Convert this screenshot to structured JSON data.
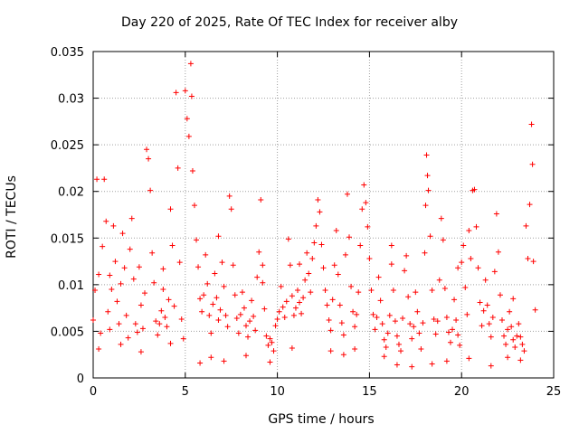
{
  "chart_data": {
    "type": "scatter",
    "title": "Day 220 of 2025, Rate Of TEC Index for receiver alby",
    "xlabel": "GPS time / hours",
    "ylabel": "ROTI / TECUs",
    "xlim": [
      0,
      25
    ],
    "ylim": [
      0,
      0.035
    ],
    "x_ticks": [
      0,
      5,
      10,
      15,
      20,
      25
    ],
    "x_tick_labels": [
      "0",
      "5",
      "10",
      "15",
      "20",
      "25"
    ],
    "y_ticks": [
      0,
      0.005,
      0.01,
      0.015,
      0.02,
      0.025,
      0.03,
      0.035
    ],
    "y_tick_labels": [
      "0",
      "0.005",
      "0.01",
      "0.015",
      "0.02",
      "0.025",
      "0.03",
      "0.035"
    ],
    "grid": true,
    "marker": "+",
    "series": [
      {
        "name": "ROTI",
        "color": "#ff0000",
        "points": [
          [
            0.0,
            0.0062
          ],
          [
            0.1,
            0.0094
          ],
          [
            0.2,
            0.0213
          ],
          [
            0.3,
            0.0111
          ],
          [
            0.4,
            0.0048
          ],
          [
            0.5,
            0.0141
          ],
          [
            0.6,
            0.0213
          ],
          [
            0.7,
            0.0168
          ],
          [
            0.8,
            0.0071
          ],
          [
            0.9,
            0.0052
          ],
          [
            1.0,
            0.0095
          ],
          [
            1.1,
            0.0163
          ],
          [
            1.2,
            0.0125
          ],
          [
            1.3,
            0.0082
          ],
          [
            1.4,
            0.0058
          ],
          [
            1.5,
            0.0101
          ],
          [
            1.6,
            0.0155
          ],
          [
            1.7,
            0.0118
          ],
          [
            1.8,
            0.0067
          ],
          [
            1.9,
            0.0043
          ],
          [
            2.0,
            0.0138
          ],
          [
            2.1,
            0.0171
          ],
          [
            2.2,
            0.0106
          ],
          [
            2.3,
            0.0058
          ],
          [
            2.4,
            0.0049
          ],
          [
            2.5,
            0.0119
          ],
          [
            2.6,
            0.0078
          ],
          [
            2.7,
            0.0053
          ],
          [
            2.8,
            0.0091
          ],
          [
            2.9,
            0.0245
          ],
          [
            3.0,
            0.0235
          ],
          [
            3.1,
            0.0201
          ],
          [
            3.2,
            0.0134
          ],
          [
            3.3,
            0.0102
          ],
          [
            3.4,
            0.0061
          ],
          [
            3.5,
            0.0046
          ],
          [
            3.6,
            0.0058
          ],
          [
            3.7,
            0.0072
          ],
          [
            3.8,
            0.0095
          ],
          [
            3.9,
            0.0065
          ],
          [
            4.0,
            0.0055
          ],
          [
            4.1,
            0.0084
          ],
          [
            4.2,
            0.0181
          ],
          [
            4.3,
            0.0142
          ],
          [
            4.4,
            0.0077
          ],
          [
            4.5,
            0.0306
          ],
          [
            4.6,
            0.0225
          ],
          [
            4.7,
            0.0124
          ],
          [
            4.8,
            0.0063
          ],
          [
            4.9,
            0.0042
          ],
          [
            5.0,
            0.0308
          ],
          [
            5.1,
            0.0278
          ],
          [
            5.2,
            0.0259
          ],
          [
            5.3,
            0.0337
          ],
          [
            5.35,
            0.0302
          ],
          [
            5.4,
            0.0222
          ],
          [
            5.5,
            0.0185
          ],
          [
            5.6,
            0.0148
          ],
          [
            5.7,
            0.0119
          ],
          [
            5.8,
            0.0085
          ],
          [
            5.9,
            0.0071
          ],
          [
            6.0,
            0.0089
          ],
          [
            6.1,
            0.0132
          ],
          [
            6.2,
            0.0101
          ],
          [
            6.3,
            0.0067
          ],
          [
            6.4,
            0.0048
          ],
          [
            6.5,
            0.0079
          ],
          [
            6.6,
            0.0112
          ],
          [
            6.7,
            0.0086
          ],
          [
            6.8,
            0.0062
          ],
          [
            6.9,
            0.0073
          ],
          [
            7.0,
            0.0124
          ],
          [
            7.1,
            0.0098
          ],
          [
            7.2,
            0.0067
          ],
          [
            7.3,
            0.0055
          ],
          [
            7.4,
            0.0195
          ],
          [
            7.5,
            0.0181
          ],
          [
            7.6,
            0.0121
          ],
          [
            7.7,
            0.0089
          ],
          [
            7.8,
            0.0064
          ],
          [
            7.9,
            0.0048
          ],
          [
            8.0,
            0.0068
          ],
          [
            8.1,
            0.0092
          ],
          [
            8.2,
            0.0075
          ],
          [
            8.3,
            0.0056
          ],
          [
            8.4,
            0.0044
          ],
          [
            8.5,
            0.0061
          ],
          [
            8.6,
            0.0083
          ],
          [
            8.7,
            0.0066
          ],
          [
            8.8,
            0.0051
          ],
          [
            8.9,
            0.0108
          ],
          [
            9.0,
            0.0135
          ],
          [
            9.1,
            0.0191
          ],
          [
            9.2,
            0.0121
          ],
          [
            9.3,
            0.0074
          ],
          [
            9.4,
            0.0045
          ],
          [
            9.5,
            0.0035
          ],
          [
            9.6,
            0.0042
          ],
          [
            9.7,
            0.0038
          ],
          [
            9.8,
            0.0029
          ],
          [
            9.9,
            0.0056
          ],
          [
            10.0,
            0.0063
          ],
          [
            10.1,
            0.0071
          ],
          [
            10.2,
            0.0098
          ],
          [
            10.3,
            0.0076
          ],
          [
            10.4,
            0.0065
          ],
          [
            10.5,
            0.0082
          ],
          [
            10.6,
            0.0149
          ],
          [
            10.7,
            0.0121
          ],
          [
            10.8,
            0.0088
          ],
          [
            10.9,
            0.0067
          ],
          [
            11.0,
            0.0075
          ],
          [
            11.1,
            0.0094
          ],
          [
            11.2,
            0.0081
          ],
          [
            11.3,
            0.0069
          ],
          [
            11.4,
            0.0086
          ],
          [
            11.5,
            0.0105
          ],
          [
            11.6,
            0.0134
          ],
          [
            11.7,
            0.0112
          ],
          [
            11.8,
            0.0092
          ],
          [
            11.9,
            0.0128
          ],
          [
            12.0,
            0.0145
          ],
          [
            12.1,
            0.0163
          ],
          [
            12.2,
            0.0191
          ],
          [
            12.3,
            0.0178
          ],
          [
            12.4,
            0.0143
          ],
          [
            12.5,
            0.0118
          ],
          [
            12.6,
            0.0094
          ],
          [
            12.7,
            0.0078
          ],
          [
            12.8,
            0.0062
          ],
          [
            12.9,
            0.0051
          ],
          [
            13.0,
            0.0084
          ],
          [
            13.1,
            0.0121
          ],
          [
            13.2,
            0.0158
          ],
          [
            13.3,
            0.0111
          ],
          [
            13.4,
            0.0078
          ],
          [
            13.5,
            0.0059
          ],
          [
            13.6,
            0.0046
          ],
          [
            13.7,
            0.0132
          ],
          [
            13.8,
            0.0197
          ],
          [
            13.9,
            0.0151
          ],
          [
            14.0,
            0.0098
          ],
          [
            14.1,
            0.0071
          ],
          [
            14.2,
            0.0055
          ],
          [
            14.3,
            0.0068
          ],
          [
            14.4,
            0.0092
          ],
          [
            14.5,
            0.0142
          ],
          [
            14.6,
            0.0181
          ],
          [
            14.7,
            0.0207
          ],
          [
            14.8,
            0.0188
          ],
          [
            14.9,
            0.0162
          ],
          [
            15.0,
            0.0128
          ],
          [
            15.1,
            0.0094
          ],
          [
            15.2,
            0.0068
          ],
          [
            15.3,
            0.0052
          ],
          [
            15.4,
            0.0065
          ],
          [
            15.5,
            0.0108
          ],
          [
            15.6,
            0.0083
          ],
          [
            15.7,
            0.0058
          ],
          [
            15.8,
            0.0041
          ],
          [
            15.9,
            0.0033
          ],
          [
            16.0,
            0.0048
          ],
          [
            16.1,
            0.0067
          ],
          [
            16.2,
            0.0122
          ],
          [
            16.3,
            0.0094
          ],
          [
            16.4,
            0.0061
          ],
          [
            16.5,
            0.0045
          ],
          [
            16.6,
            0.0036
          ],
          [
            16.7,
            0.0029
          ],
          [
            16.8,
            0.0064
          ],
          [
            16.9,
            0.0115
          ],
          [
            17.0,
            0.0131
          ],
          [
            17.1,
            0.0087
          ],
          [
            17.2,
            0.0058
          ],
          [
            17.3,
            0.0042
          ],
          [
            17.4,
            0.0055
          ],
          [
            17.5,
            0.0092
          ],
          [
            17.6,
            0.0071
          ],
          [
            17.7,
            0.0048
          ],
          [
            17.8,
            0.0031
          ],
          [
            17.9,
            0.0059
          ],
          [
            18.0,
            0.0134
          ],
          [
            18.05,
            0.0185
          ],
          [
            18.1,
            0.0239
          ],
          [
            18.15,
            0.0217
          ],
          [
            18.2,
            0.0201
          ],
          [
            18.3,
            0.0152
          ],
          [
            18.4,
            0.0094
          ],
          [
            18.5,
            0.0063
          ],
          [
            18.6,
            0.0047
          ],
          [
            18.7,
            0.0061
          ],
          [
            18.8,
            0.0105
          ],
          [
            18.9,
            0.0171
          ],
          [
            19.0,
            0.0148
          ],
          [
            19.1,
            0.0096
          ],
          [
            19.2,
            0.0065
          ],
          [
            19.3,
            0.0049
          ],
          [
            19.4,
            0.0038
          ],
          [
            19.5,
            0.0052
          ],
          [
            19.6,
            0.0084
          ],
          [
            19.7,
            0.0062
          ],
          [
            19.8,
            0.0046
          ],
          [
            19.9,
            0.0035
          ],
          [
            20.0,
            0.0124
          ],
          [
            20.1,
            0.0142
          ],
          [
            20.2,
            0.0097
          ],
          [
            20.3,
            0.0068
          ],
          [
            20.4,
            0.0158
          ],
          [
            20.5,
            0.0128
          ],
          [
            20.6,
            0.0201
          ],
          [
            20.7,
            0.0202
          ],
          [
            20.8,
            0.0162
          ],
          [
            20.9,
            0.0118
          ],
          [
            21.0,
            0.0081
          ],
          [
            21.1,
            0.0056
          ],
          [
            21.2,
            0.0072
          ],
          [
            21.3,
            0.0105
          ],
          [
            21.4,
            0.0078
          ],
          [
            21.5,
            0.0058
          ],
          [
            21.6,
            0.0044
          ],
          [
            21.7,
            0.0065
          ],
          [
            21.8,
            0.0114
          ],
          [
            21.9,
            0.0176
          ],
          [
            22.0,
            0.0135
          ],
          [
            22.1,
            0.0089
          ],
          [
            22.2,
            0.0062
          ],
          [
            22.3,
            0.0045
          ],
          [
            22.4,
            0.0036
          ],
          [
            22.5,
            0.0052
          ],
          [
            22.6,
            0.0071
          ],
          [
            22.7,
            0.0055
          ],
          [
            22.8,
            0.0041
          ],
          [
            22.9,
            0.0033
          ],
          [
            23.0,
            0.0045
          ],
          [
            23.1,
            0.0058
          ],
          [
            23.2,
            0.0044
          ],
          [
            23.3,
            0.0036
          ],
          [
            23.4,
            0.0029
          ],
          [
            23.5,
            0.0163
          ],
          [
            23.6,
            0.0128
          ],
          [
            23.7,
            0.0186
          ],
          [
            23.8,
            0.0272
          ],
          [
            23.85,
            0.0229
          ],
          [
            23.9,
            0.0125
          ],
          [
            24.0,
            0.0073
          ],
          [
            0.3,
            0.0031
          ],
          [
            1.5,
            0.0036
          ],
          [
            2.6,
            0.0028
          ],
          [
            4.2,
            0.0037
          ],
          [
            5.8,
            0.0016
          ],
          [
            6.4,
            0.0022
          ],
          [
            7.1,
            0.0018
          ],
          [
            8.3,
            0.0024
          ],
          [
            9.6,
            0.0017
          ],
          [
            10.8,
            0.0032
          ],
          [
            12.9,
            0.0029
          ],
          [
            13.6,
            0.0025
          ],
          [
            14.2,
            0.0031
          ],
          [
            15.8,
            0.0023
          ],
          [
            16.5,
            0.0014
          ],
          [
            17.3,
            0.0012
          ],
          [
            18.4,
            0.0015
          ],
          [
            19.2,
            0.0018
          ],
          [
            20.4,
            0.0021
          ],
          [
            21.6,
            0.0013
          ],
          [
            22.5,
            0.0022
          ],
          [
            23.2,
            0.0019
          ],
          [
            0.9,
            0.011
          ],
          [
            3.8,
            0.0117
          ],
          [
            6.8,
            0.0152
          ],
          [
            9.2,
            0.0102
          ],
          [
            11.2,
            0.0122
          ],
          [
            16.2,
            0.0142
          ],
          [
            19.8,
            0.0118
          ],
          [
            22.8,
            0.0085
          ]
        ]
      }
    ]
  }
}
